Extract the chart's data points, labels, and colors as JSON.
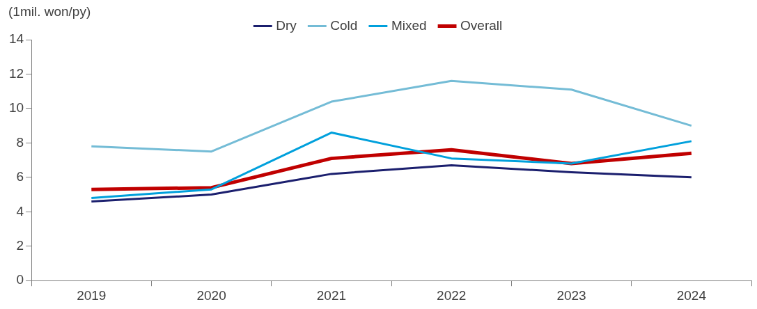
{
  "chart_data": {
    "type": "line",
    "ylabel": "(1mil. won/py)",
    "categories": [
      "2019",
      "2020",
      "2021",
      "2022",
      "2023",
      "2024"
    ],
    "series": [
      {
        "name": "Dry",
        "color": "#1b1f6e",
        "values": [
          4.6,
          5.0,
          6.2,
          6.7,
          6.3,
          6.0
        ]
      },
      {
        "name": "Cold",
        "color": "#74bcd6",
        "values": [
          7.8,
          7.5,
          10.4,
          11.6,
          11.1,
          9.0
        ]
      },
      {
        "name": "Mixed",
        "color": "#00a0dc",
        "values": [
          4.8,
          5.3,
          8.6,
          7.1,
          6.8,
          8.1
        ]
      },
      {
        "name": "Overall",
        "color": "#c00000",
        "values": [
          5.3,
          5.4,
          7.1,
          7.6,
          6.8,
          7.4
        ]
      }
    ],
    "ylim": [
      0,
      14
    ],
    "yticks": [
      0,
      2,
      4,
      6,
      8,
      10,
      12,
      14
    ],
    "grid": false,
    "legend": "top",
    "marker": "none",
    "line_style": "solid"
  }
}
